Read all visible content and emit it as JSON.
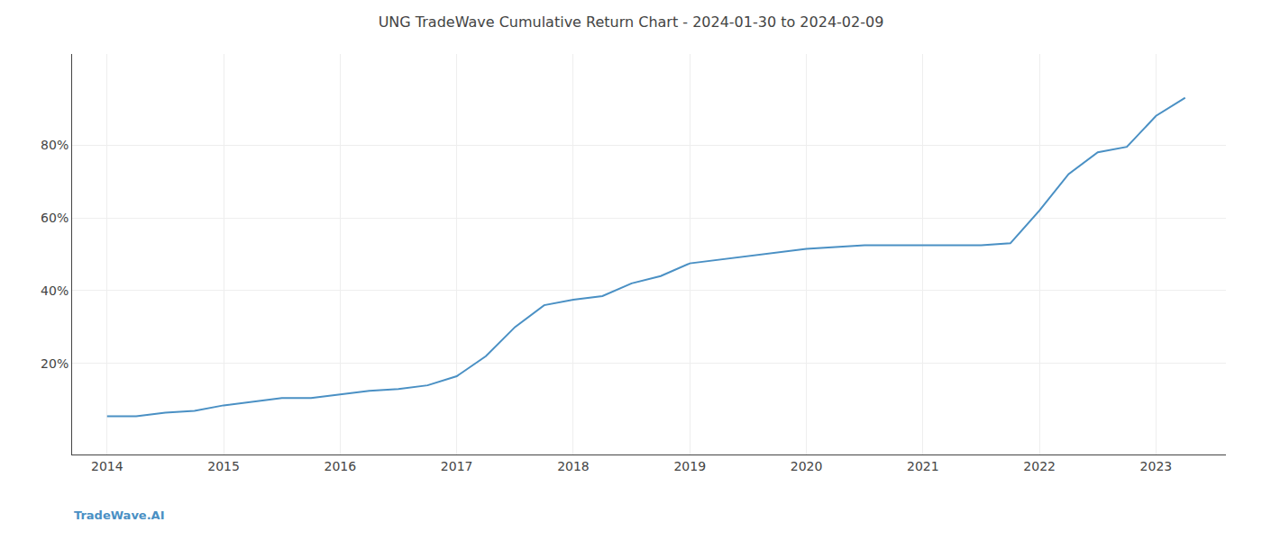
{
  "chart_data": {
    "type": "line",
    "title": "UNG TradeWave Cumulative Return Chart - 2024-01-30 to 2024-02-09",
    "annotations": [
      "TradeWave.AI"
    ],
    "color": "#4a90c4",
    "x": [
      2014.0,
      2014.25,
      2014.5,
      2014.75,
      2015.0,
      2015.25,
      2015.5,
      2015.75,
      2016.0,
      2016.25,
      2016.5,
      2016.75,
      2017.0,
      2017.25,
      2017.5,
      2017.75,
      2018.0,
      2018.25,
      2018.5,
      2018.75,
      2019.0,
      2019.25,
      2019.5,
      2019.75,
      2020.0,
      2020.25,
      2020.5,
      2020.75,
      2021.0,
      2021.25,
      2021.5,
      2021.75,
      2022.0,
      2022.25,
      2022.5,
      2022.75,
      2023.0,
      2023.25
    ],
    "values": [
      5.5,
      5.5,
      6.5,
      7.0,
      8.5,
      9.5,
      10.5,
      10.5,
      11.5,
      12.5,
      13.0,
      14.0,
      16.5,
      22.0,
      30.0,
      36.0,
      37.5,
      38.5,
      42.0,
      44.0,
      47.5,
      48.5,
      49.5,
      50.5,
      51.5,
      52.0,
      52.5,
      52.5,
      52.5,
      52.5,
      52.5,
      53.0,
      62.0,
      72.0,
      78.0,
      79.5,
      88.0,
      93.0
    ],
    "xlim": [
      2013.7,
      2023.6
    ],
    "xticks": [
      2014,
      2015,
      2016,
      2017,
      2018,
      2019,
      2020,
      2021,
      2022,
      2023
    ],
    "ylim": [
      -5,
      105
    ],
    "yticks": [
      {
        "value": 20,
        "label": "20%"
      },
      {
        "value": 40,
        "label": "40%"
      },
      {
        "value": 60,
        "label": "60%"
      },
      {
        "value": 80,
        "label": "80%"
      }
    ],
    "grid": true
  }
}
